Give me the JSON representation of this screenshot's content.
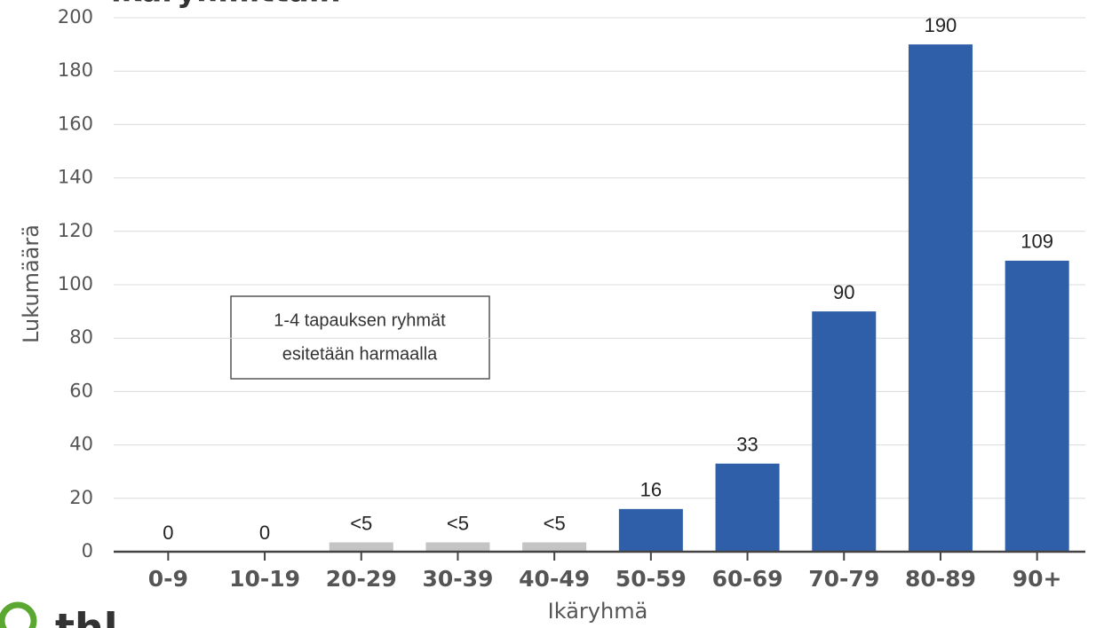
{
  "chart_data": {
    "type": "bar",
    "title": "ikäryhmittäin",
    "xlabel": "Ikäryhmä",
    "ylabel": "Lukumäärä",
    "categories": [
      "0-9",
      "10-19",
      "20-29",
      "30-39",
      "40-49",
      "50-59",
      "60-69",
      "70-79",
      "80-89",
      "90+"
    ],
    "values": [
      0,
      0,
      3.5,
      3.5,
      3.5,
      16,
      33,
      90,
      190,
      109
    ],
    "value_labels": [
      "0",
      "0",
      "<5",
      "<5",
      "<5",
      "16",
      "33",
      "90",
      "190",
      "109"
    ],
    "colors": [
      "#2e5fa8",
      "#2e5fa8",
      "#c4c4c4",
      "#c4c4c4",
      "#c4c4c4",
      "#2e5fa8",
      "#2e5fa8",
      "#2e5fa8",
      "#2e5fa8",
      "#2e5fa8"
    ],
    "ylim": [
      0,
      200
    ],
    "yticks": [
      0,
      20,
      40,
      60,
      80,
      100,
      120,
      140,
      160,
      180,
      200
    ],
    "grid": true,
    "annotation": [
      "1-4 tapauksen ryhmät",
      "esitetään harmaalla"
    ],
    "logo": "thl"
  }
}
